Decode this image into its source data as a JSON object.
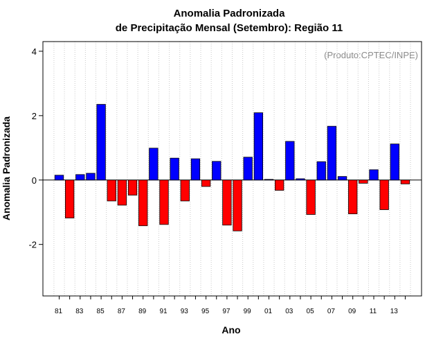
{
  "chart_data": {
    "type": "bar",
    "title_line1": "Anomalia Padronizada",
    "title_line2": "de Precipitação Mensal (Setembro): Região 11",
    "xlabel": "Ano",
    "ylabel": "Anomalia Padronizada",
    "credit": "(Produto:CPTEC/INPE)",
    "ylim": [
      -3.6,
      4.3
    ],
    "yticks": [
      -2,
      0,
      2,
      4
    ],
    "ytick_labels": [
      "-2",
      "0",
      "2",
      "4"
    ],
    "categories": [
      "81",
      "82",
      "83",
      "84",
      "85",
      "86",
      "87",
      "88",
      "89",
      "90",
      "91",
      "92",
      "93",
      "94",
      "95",
      "96",
      "97",
      "98",
      "99",
      "00",
      "01",
      "02",
      "03",
      "04",
      "05",
      "06",
      "07",
      "08",
      "09",
      "10",
      "11",
      "12",
      "13",
      "14"
    ],
    "tick_labels": [
      "81",
      "83",
      "85",
      "87",
      "89",
      "91",
      "93",
      "95",
      "97",
      "99",
      "01",
      "03",
      "05",
      "07",
      "09",
      "11",
      "13"
    ],
    "values": [
      0.15,
      -1.18,
      0.17,
      0.21,
      2.35,
      -0.65,
      -0.78,
      -0.47,
      -1.42,
      0.99,
      -1.38,
      0.68,
      -0.65,
      0.66,
      -0.2,
      0.58,
      -1.4,
      -1.58,
      0.71,
      2.09,
      0.02,
      -0.32,
      1.2,
      0.04,
      -1.07,
      0.57,
      1.67,
      0.11,
      -1.05,
      -0.1,
      0.32,
      -0.92,
      1.12,
      -0.12
    ],
    "positive_color": "#0000ff",
    "negative_color": "#ff0000",
    "grid": true,
    "gridline_color": "#c8c8c8"
  }
}
